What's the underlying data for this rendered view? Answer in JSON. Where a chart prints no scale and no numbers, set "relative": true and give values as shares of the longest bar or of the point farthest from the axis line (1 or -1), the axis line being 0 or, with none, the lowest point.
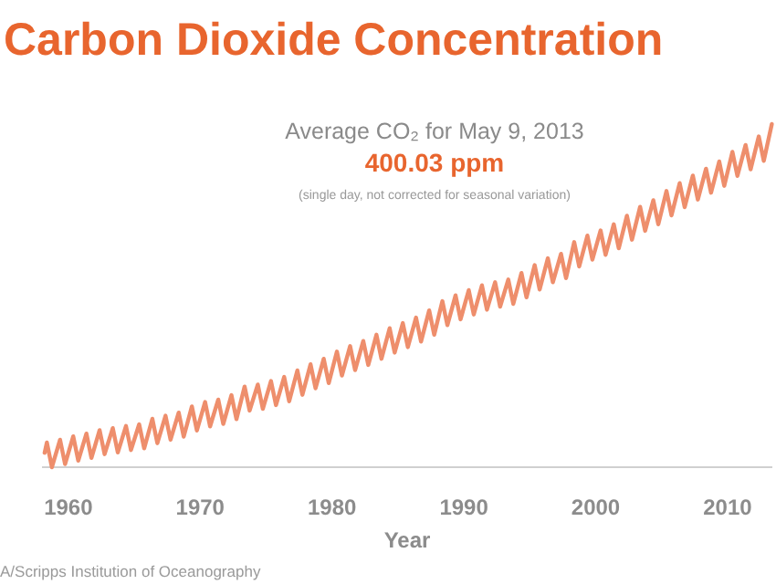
{
  "chart_data": {
    "type": "line",
    "title": "Carbon Dioxide Concentration",
    "xlabel": "Year",
    "annotations": [
      "Average CO₂ for May 9, 2013",
      "400.03 ppm",
      "(single day, not corrected for seasonal variation)",
      "A/Scripps Institution of Oceanography"
    ],
    "relative": true,
    "xlim": [
      1958,
      2013.4
    ],
    "xticks": [
      1960,
      1970,
      1980,
      1990,
      2000,
      2010
    ],
    "series": [
      {
        "color": "#ee8e6c",
        "x": [
          1958.2,
          1958.37,
          1958.75,
          1959.37,
          1959.75,
          1960.37,
          1960.75,
          1961.37,
          1961.75,
          1962.37,
          1962.75,
          1963.37,
          1963.75,
          1964.37,
          1964.75,
          1965.37,
          1965.75,
          1966.37,
          1966.75,
          1967.37,
          1967.75,
          1968.37,
          1968.75,
          1969.37,
          1969.75,
          1970.37,
          1970.75,
          1971.37,
          1971.75,
          1972.37,
          1972.75,
          1973.37,
          1973.75,
          1974.37,
          1974.75,
          1975.37,
          1975.75,
          1976.37,
          1976.75,
          1977.37,
          1977.75,
          1978.37,
          1978.75,
          1979.37,
          1979.75,
          1980.37,
          1980.75,
          1981.37,
          1981.75,
          1982.37,
          1982.75,
          1983.37,
          1983.75,
          1984.37,
          1984.75,
          1985.37,
          1985.75,
          1986.37,
          1986.75,
          1987.37,
          1987.75,
          1988.37,
          1988.75,
          1989.37,
          1989.75,
          1990.37,
          1990.75,
          1991.37,
          1991.75,
          1992.37,
          1992.75,
          1993.37,
          1993.75,
          1994.37,
          1994.75,
          1995.37,
          1995.75,
          1996.37,
          1996.75,
          1997.37,
          1997.75,
          1998.37,
          1998.75,
          1999.37,
          1999.75,
          2000.37,
          2000.75,
          2001.37,
          2001.75,
          2002.37,
          2002.75,
          2003.37,
          2003.75,
          2004.37,
          2004.75,
          2005.37,
          2005.75,
          2006.37,
          2006.75,
          2007.37,
          2007.75,
          2008.37,
          2008.75,
          2009.37,
          2009.75,
          2010.37,
          2010.75,
          2011.37,
          2011.75,
          2012.37,
          2012.75,
          2013.36
        ],
        "values": [
          0.042,
          0.072,
          0,
          0.08,
          0.009,
          0.09,
          0.019,
          0.098,
          0.027,
          0.108,
          0.038,
          0.114,
          0.043,
          0.12,
          0.05,
          0.125,
          0.055,
          0.141,
          0.07,
          0.15,
          0.08,
          0.159,
          0.089,
          0.177,
          0.107,
          0.19,
          0.119,
          0.197,
          0.126,
          0.21,
          0.14,
          0.235,
          0.165,
          0.241,
          0.17,
          0.251,
          0.181,
          0.263,
          0.192,
          0.282,
          0.211,
          0.3,
          0.23,
          0.316,
          0.245,
          0.337,
          0.267,
          0.353,
          0.283,
          0.368,
          0.298,
          0.386,
          0.316,
          0.405,
          0.334,
          0.42,
          0.35,
          0.436,
          0.366,
          0.457,
          0.386,
          0.484,
          0.414,
          0.501,
          0.431,
          0.516,
          0.445,
          0.53,
          0.459,
          0.539,
          0.468,
          0.547,
          0.476,
          0.566,
          0.495,
          0.589,
          0.518,
          0.609,
          0.539,
          0.622,
          0.551,
          0.656,
          0.585,
          0.675,
          0.605,
          0.69,
          0.619,
          0.708,
          0.638,
          0.733,
          0.663,
          0.759,
          0.689,
          0.778,
          0.708,
          0.805,
          0.734,
          0.828,
          0.758,
          0.85,
          0.78,
          0.87,
          0.8,
          0.891,
          0.82,
          0.919,
          0.849,
          0.939,
          0.868,
          0.964,
          0.893,
          1
        ]
      }
    ]
  }
}
